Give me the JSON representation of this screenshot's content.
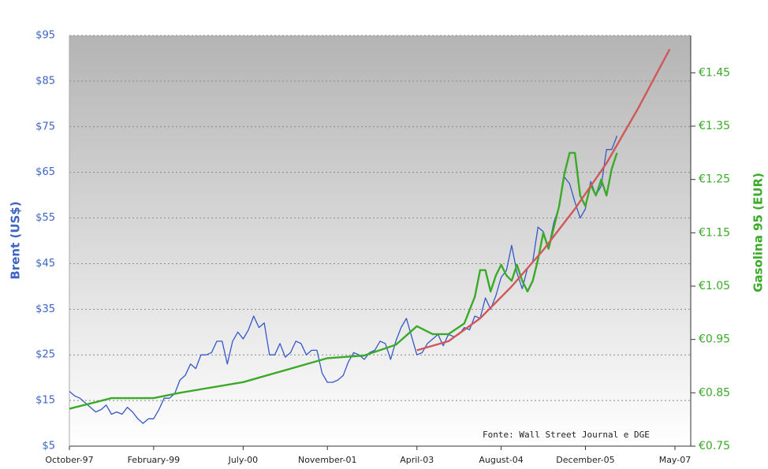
{
  "chart_data": {
    "type": "line",
    "ylabel": "Brent (US$)",
    "y2label": "Gasolina 95 (EUR)",
    "annotation": "Fonte: Wall Street Journal e DGE",
    "xlim": [
      "1997-10",
      "2007-08"
    ],
    "xticks": [
      {
        "value": "1997-10",
        "label": "October-97"
      },
      {
        "value": "1999-02",
        "label": "February-99"
      },
      {
        "value": "2000-07",
        "label": "July-00"
      },
      {
        "value": "2001-11",
        "label": "November-01"
      },
      {
        "value": "2003-04",
        "label": "April-03"
      },
      {
        "value": "2004-08",
        "label": "August-04"
      },
      {
        "value": "2005-12",
        "label": "December-05"
      },
      {
        "value": "2007-05",
        "label": "May-07"
      }
    ],
    "ylim": [
      5,
      95
    ],
    "yticks": [
      {
        "value": 5,
        "label": "$5"
      },
      {
        "value": 15,
        "label": "$15"
      },
      {
        "value": 25,
        "label": "$25"
      },
      {
        "value": 35,
        "label": "$35"
      },
      {
        "value": 45,
        "label": "$45"
      },
      {
        "value": 55,
        "label": "$55"
      },
      {
        "value": 65,
        "label": "$65"
      },
      {
        "value": 75,
        "label": "$75"
      },
      {
        "value": 85,
        "label": "$85"
      },
      {
        "value": 95,
        "label": "$95"
      }
    ],
    "y2lim": [
      0.75,
      1.52
    ],
    "y2ticks": [
      {
        "value": 0.75,
        "label": "€0.75"
      },
      {
        "value": 0.85,
        "label": "€0.85"
      },
      {
        "value": 0.95,
        "label": "€0.95"
      },
      {
        "value": 1.05,
        "label": "€1.05"
      },
      {
        "value": 1.15,
        "label": "€1.15"
      },
      {
        "value": 1.25,
        "label": "€1.25"
      },
      {
        "value": 1.35,
        "label": "€1.35"
      },
      {
        "value": 1.45,
        "label": "€1.45"
      }
    ],
    "grid": true,
    "series": [
      {
        "color": "#3558c8",
        "x": [
          "1997-10",
          "1997-11",
          "1997-12",
          "1998-01",
          "1998-02",
          "1998-03",
          "1998-04",
          "1998-05",
          "1998-06",
          "1998-07",
          "1998-08",
          "1998-09",
          "1998-10",
          "1998-11",
          "1998-12",
          "1999-01",
          "1999-02",
          "1999-03",
          "1999-04",
          "1999-05",
          "1999-06",
          "1999-07",
          "1999-08",
          "1999-09",
          "1999-10",
          "1999-11",
          "1999-12",
          "2000-01",
          "2000-02",
          "2000-03",
          "2000-04",
          "2000-05",
          "2000-06",
          "2000-07",
          "2000-08",
          "2000-09",
          "2000-10",
          "2000-11",
          "2000-12",
          "2001-01",
          "2001-02",
          "2001-03",
          "2001-04",
          "2001-05",
          "2001-06",
          "2001-07",
          "2001-08",
          "2001-09",
          "2001-10",
          "2001-11",
          "2001-12",
          "2002-01",
          "2002-02",
          "2002-03",
          "2002-04",
          "2002-05",
          "2002-06",
          "2002-07",
          "2002-08",
          "2002-09",
          "2002-10",
          "2002-11",
          "2002-12",
          "2003-01",
          "2003-02",
          "2003-03",
          "2003-04",
          "2003-05",
          "2003-06",
          "2003-07",
          "2003-08",
          "2003-09",
          "2003-10",
          "2003-11",
          "2003-12",
          "2004-01",
          "2004-02",
          "2004-03",
          "2004-04",
          "2004-05",
          "2004-06",
          "2004-07",
          "2004-08",
          "2004-09",
          "2004-10",
          "2004-11",
          "2004-12",
          "2005-01",
          "2005-02",
          "2005-03",
          "2005-04",
          "2005-05",
          "2005-06",
          "2005-07",
          "2005-08",
          "2005-09",
          "2005-10",
          "2005-11",
          "2005-12",
          "2006-01",
          "2006-02",
          "2006-03",
          "2006-04",
          "2006-05",
          "2006-06"
        ],
        "values": [
          17,
          16,
          15.5,
          14.5,
          13.5,
          12.5,
          13,
          14,
          12,
          12.5,
          12,
          13.5,
          12.5,
          11,
          10,
          11,
          11,
          13,
          15.5,
          15.5,
          16.5,
          19.5,
          20.5,
          23,
          22,
          25,
          25,
          25.5,
          28,
          28,
          23,
          28,
          30,
          28.5,
          30.5,
          33.5,
          31,
          32,
          25,
          25,
          27.5,
          24.5,
          25.5,
          28,
          27.5,
          25,
          26,
          26,
          21,
          19,
          19,
          19.5,
          20.5,
          23.5,
          25.5,
          25,
          24,
          25.5,
          26,
          28,
          27.5,
          24,
          28,
          31,
          33,
          29,
          25,
          25.5,
          27.5,
          28.5,
          29.5,
          27,
          29.5,
          29,
          29.5,
          31,
          30.5,
          33.5,
          33,
          37.5,
          35,
          38,
          42,
          43.5,
          49,
          43,
          39.5,
          44,
          45.5,
          53,
          52,
          48.5,
          54,
          57.5,
          64,
          62.5,
          58.5,
          55,
          57,
          63,
          60,
          62,
          70,
          70,
          73
        ]
      },
      {
        "color": "#3aaa28",
        "axis": "y2",
        "x": [
          "1997-10",
          "1998-06",
          "1999-02",
          "1999-07",
          "2000-07",
          "2001-11",
          "2002-06",
          "2002-12",
          "2003-04",
          "2003-07",
          "2003-10",
          "2004-01",
          "2004-03",
          "2004-04",
          "2004-05",
          "2004-06",
          "2004-07",
          "2004-08",
          "2004-09",
          "2004-10",
          "2004-11",
          "2004-12",
          "2005-01",
          "2005-02",
          "2005-03",
          "2005-04",
          "2005-05",
          "2005-06",
          "2005-07",
          "2005-08",
          "2005-09",
          "2005-10",
          "2005-11",
          "2005-12",
          "2006-01",
          "2006-02",
          "2006-03",
          "2006-04",
          "2006-05",
          "2006-06"
        ],
        "values": [
          0.82,
          0.84,
          0.84,
          0.85,
          0.87,
          0.915,
          0.92,
          0.94,
          0.975,
          0.96,
          0.96,
          0.98,
          1.03,
          1.08,
          1.08,
          1.04,
          1.07,
          1.09,
          1.07,
          1.06,
          1.09,
          1.06,
          1.04,
          1.06,
          1.1,
          1.15,
          1.12,
          1.16,
          1.2,
          1.26,
          1.3,
          1.3,
          1.22,
          1.2,
          1.24,
          1.22,
          1.25,
          1.22,
          1.27,
          1.3
        ]
      },
      {
        "color": "#d05858",
        "x": [
          "2003-04",
          "2003-10",
          "2004-04",
          "2004-10",
          "2005-04",
          "2005-10",
          "2006-04",
          "2006-10",
          "2007-04"
        ],
        "values": [
          26,
          28,
          33,
          40,
          48,
          57,
          67,
          79,
          92
        ]
      }
    ]
  }
}
